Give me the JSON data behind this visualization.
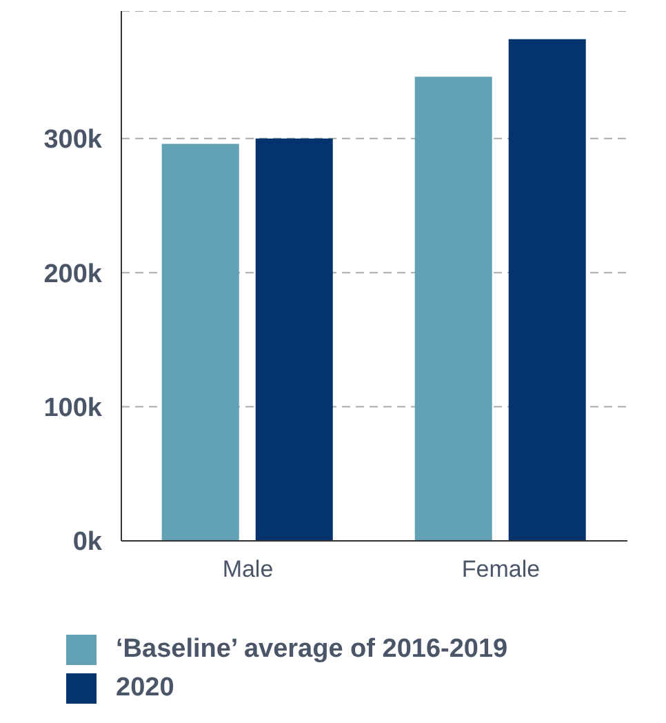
{
  "chart_data": {
    "type": "bar",
    "categories": [
      "Male",
      "Female"
    ],
    "series": [
      {
        "name": "‘Baseline’ average of 2016-2019",
        "color": "#62a0b4",
        "values": [
          296000,
          346000
        ]
      },
      {
        "name": "2020",
        "color": "#04336e",
        "values": [
          300000,
          374000
        ]
      }
    ],
    "ylim": [
      0,
      395000
    ],
    "yticks": [
      {
        "value": 0,
        "label": "0k"
      },
      {
        "value": 100000,
        "label": "100k"
      },
      {
        "value": 200000,
        "label": "200k"
      },
      {
        "value": 300000,
        "label": "300k"
      }
    ],
    "grid": "y",
    "legend": "bottom"
  }
}
